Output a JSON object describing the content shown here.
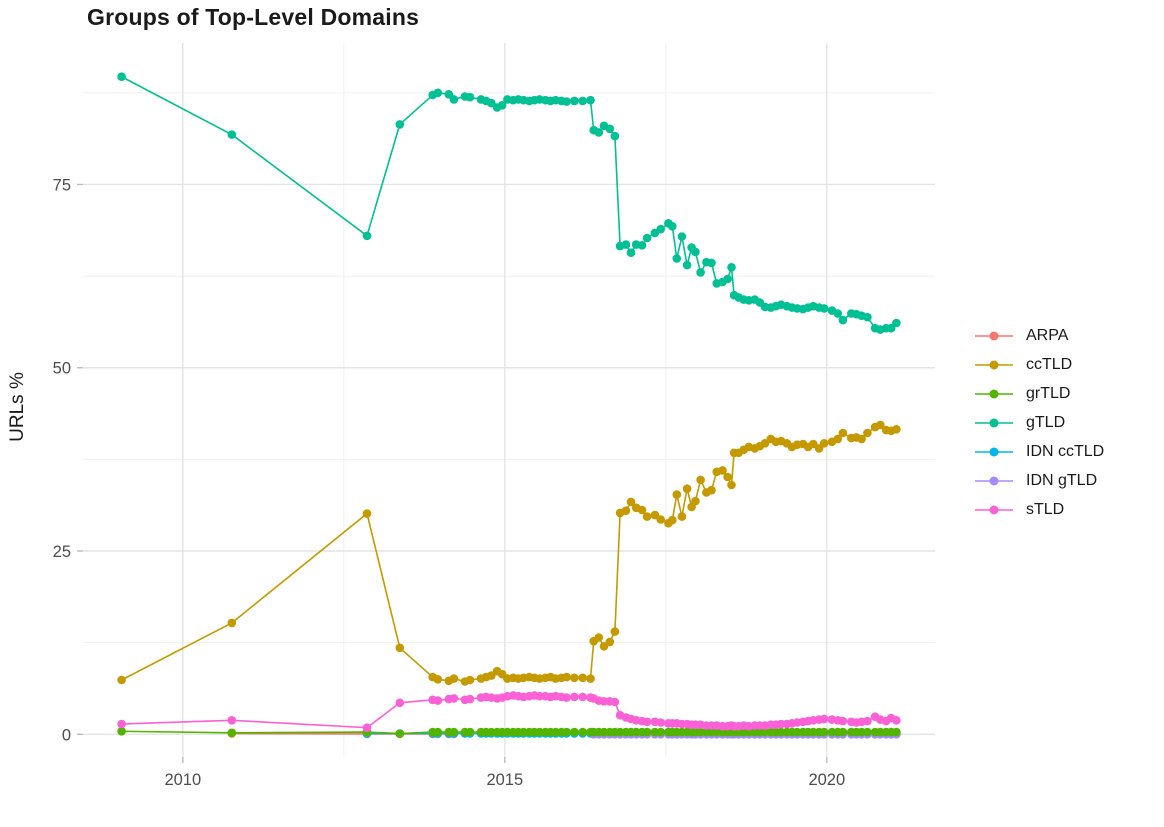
{
  "title": "Groups of Top-Level Domains",
  "axes": {
    "y_label": "URLs %",
    "y_ticks": [
      "0",
      "25",
      "50",
      "75"
    ],
    "x_ticks": [
      "2010",
      "2015",
      "2020"
    ]
  },
  "chart_data": {
    "type": "line",
    "title": "Groups of Top-Level Domains",
    "xlabel": "",
    "ylabel": "URLs %",
    "xlim": [
      2008.45,
      2021.68
    ],
    "ylim": [
      -3.1,
      94.3
    ],
    "x_major": [
      2010,
      2015,
      2020
    ],
    "x_minor": [
      2012.5,
      2017.5
    ],
    "y_major": [
      0,
      25,
      50,
      75
    ],
    "y_minor": [
      12.5,
      37.5,
      62.5,
      87.5
    ],
    "grid": true,
    "legend_position": "right",
    "marker_radius": 4.3,
    "grid_major_color": "#e4e4e4",
    "grid_minor_color": "#f1f1f1",
    "tick_color": "#4d4d4d",
    "draw_order": [
      "ARPA",
      "IDN ccTLD",
      "IDN gTLD",
      "grTLD",
      "ccTLD",
      "gTLD",
      "sTLD"
    ],
    "month_x": [
      2013.88,
      2013.96,
      2014.13,
      2014.21,
      2014.38,
      2014.46,
      2014.63,
      2014.71,
      2014.79,
      2014.88,
      2014.96,
      2015.04,
      2015.13,
      2015.21,
      2015.29,
      2015.38,
      2015.46,
      2015.54,
      2015.63,
      2015.71,
      2015.79,
      2015.88,
      2015.96,
      2016.08,
      2016.21,
      2016.33,
      2016.38,
      2016.46,
      2016.54,
      2016.63,
      2016.71,
      2016.79,
      2016.88,
      2016.96,
      2017.04,
      2017.13,
      2017.21,
      2017.33,
      2017.42,
      2017.54,
      2017.6,
      2017.67,
      2017.75,
      2017.83,
      2017.9,
      2017.96,
      2018.04,
      2018.13,
      2018.21,
      2018.29,
      2018.38,
      2018.46,
      2018.52,
      2018.56,
      2018.63,
      2018.71,
      2018.79,
      2018.88,
      2018.96,
      2019.04,
      2019.13,
      2019.21,
      2019.29,
      2019.38,
      2019.46,
      2019.54,
      2019.63,
      2019.71,
      2019.79,
      2019.88,
      2019.96,
      2020.08,
      2020.17,
      2020.25,
      2020.38,
      2020.46,
      2020.54,
      2020.63,
      2020.75,
      2020.83,
      2020.92,
      2021.0,
      2021.08
    ],
    "series": [
      {
        "name": "ARPA",
        "color": "#F8766D",
        "head": [
          [
            2010.76,
            0.1
          ],
          [
            2012.86,
            0.05
          ],
          [
            2013.37,
            0.05
          ],
          [
            2013.88,
            0.05
          ],
          [
            2013.96,
            0.05
          ],
          [
            2014.13,
            0.05
          ],
          [
            2014.21,
            0.05
          ]
        ]
      },
      {
        "name": "ccTLD",
        "color": "#C49A00",
        "head": [
          [
            2009.05,
            7.4
          ],
          [
            2010.76,
            15.2
          ],
          [
            2012.86,
            30.1
          ],
          [
            2013.37,
            11.8
          ]
        ],
        "y": [
          7.8,
          7.5,
          7.3,
          7.6,
          7.2,
          7.4,
          7.6,
          7.8,
          8.0,
          8.6,
          8.2,
          7.6,
          7.7,
          7.6,
          7.7,
          7.8,
          7.7,
          7.6,
          7.7,
          7.8,
          7.6,
          7.7,
          7.8,
          7.7,
          7.7,
          7.6,
          12.7,
          13.2,
          12.0,
          12.6,
          14.0,
          30.2,
          30.5,
          31.7,
          30.9,
          30.6,
          29.7,
          29.9,
          29.3,
          28.8,
          29.2,
          32.7,
          29.7,
          33.5,
          31.0,
          31.8,
          34.7,
          33.0,
          33.3,
          35.8,
          36.0,
          35.1,
          34.0,
          38.4,
          38.4,
          38.8,
          39.2,
          39.0,
          39.3,
          39.7,
          40.3,
          39.9,
          40.0,
          39.7,
          39.2,
          39.5,
          39.6,
          39.2,
          39.6,
          39.0,
          39.7,
          39.9,
          40.3,
          41.1,
          40.4,
          40.5,
          40.3,
          41.1,
          41.9,
          42.2,
          41.5,
          41.4,
          41.6
        ]
      },
      {
        "name": "grTLD",
        "color": "#53B400",
        "head": [
          [
            2009.05,
            0.4
          ],
          [
            2010.76,
            0.2
          ],
          [
            2012.86,
            0.3
          ],
          [
            2013.37,
            0.1
          ]
        ],
        "y_const": 0.3
      },
      {
        "name": "gTLD",
        "color": "#00C094",
        "head": [
          [
            2009.05,
            89.7
          ],
          [
            2010.76,
            81.8
          ],
          [
            2012.86,
            68.0
          ],
          [
            2013.37,
            83.2
          ]
        ],
        "y": [
          87.2,
          87.5,
          87.3,
          86.6,
          87.0,
          86.9,
          86.6,
          86.4,
          86.1,
          85.5,
          85.8,
          86.6,
          86.5,
          86.6,
          86.5,
          86.4,
          86.5,
          86.6,
          86.5,
          86.4,
          86.5,
          86.4,
          86.3,
          86.4,
          86.4,
          86.5,
          82.4,
          82.1,
          83.0,
          82.6,
          81.6,
          66.6,
          66.8,
          65.7,
          66.8,
          66.7,
          67.7,
          68.4,
          68.9,
          69.7,
          69.3,
          64.9,
          67.9,
          64.0,
          66.4,
          65.8,
          63.0,
          64.4,
          64.3,
          61.5,
          61.7,
          62.1,
          63.7,
          59.9,
          59.6,
          59.3,
          59.2,
          59.3,
          58.9,
          58.3,
          58.2,
          58.4,
          58.6,
          58.4,
          58.2,
          58.1,
          58.0,
          58.2,
          58.4,
          58.2,
          58.1,
          57.8,
          57.4,
          56.5,
          57.4,
          57.3,
          57.1,
          56.9,
          55.4,
          55.2,
          55.4,
          55.4,
          56.1
        ]
      },
      {
        "name": "IDN ccTLD",
        "color": "#00B6EB",
        "head": [
          [
            2012.86,
            0.1
          ],
          [
            2013.37,
            0.1
          ]
        ],
        "y_const": 0.1
      },
      {
        "name": "IDN gTLD",
        "color": "#A58AFF",
        "y_const": 0.0,
        "x_start_index": 26
      },
      {
        "name": "sTLD",
        "color": "#FB61D7",
        "head": [
          [
            2009.05,
            1.4
          ],
          [
            2010.76,
            1.9
          ],
          [
            2012.86,
            0.9
          ],
          [
            2013.37,
            4.3
          ]
        ],
        "y": [
          4.7,
          4.6,
          4.8,
          4.9,
          4.7,
          4.8,
          5.0,
          5.1,
          5.0,
          4.9,
          5.0,
          5.2,
          5.3,
          5.2,
          5.1,
          5.2,
          5.3,
          5.2,
          5.2,
          5.1,
          5.2,
          5.1,
          5.0,
          5.1,
          5.1,
          5.0,
          4.9,
          4.6,
          4.5,
          4.5,
          4.4,
          2.6,
          2.3,
          2.1,
          1.9,
          1.8,
          1.7,
          1.7,
          1.6,
          1.5,
          1.5,
          1.5,
          1.4,
          1.4,
          1.3,
          1.3,
          1.3,
          1.2,
          1.2,
          1.2,
          1.1,
          1.1,
          1.2,
          1.1,
          1.1,
          1.2,
          1.1,
          1.2,
          1.2,
          1.2,
          1.3,
          1.3,
          1.4,
          1.4,
          1.5,
          1.6,
          1.7,
          1.8,
          1.9,
          2.0,
          2.1,
          2.0,
          1.9,
          1.8,
          1.7,
          1.6,
          1.7,
          1.8,
          2.4,
          2.0,
          1.8,
          2.2,
          1.9
        ]
      }
    ]
  }
}
